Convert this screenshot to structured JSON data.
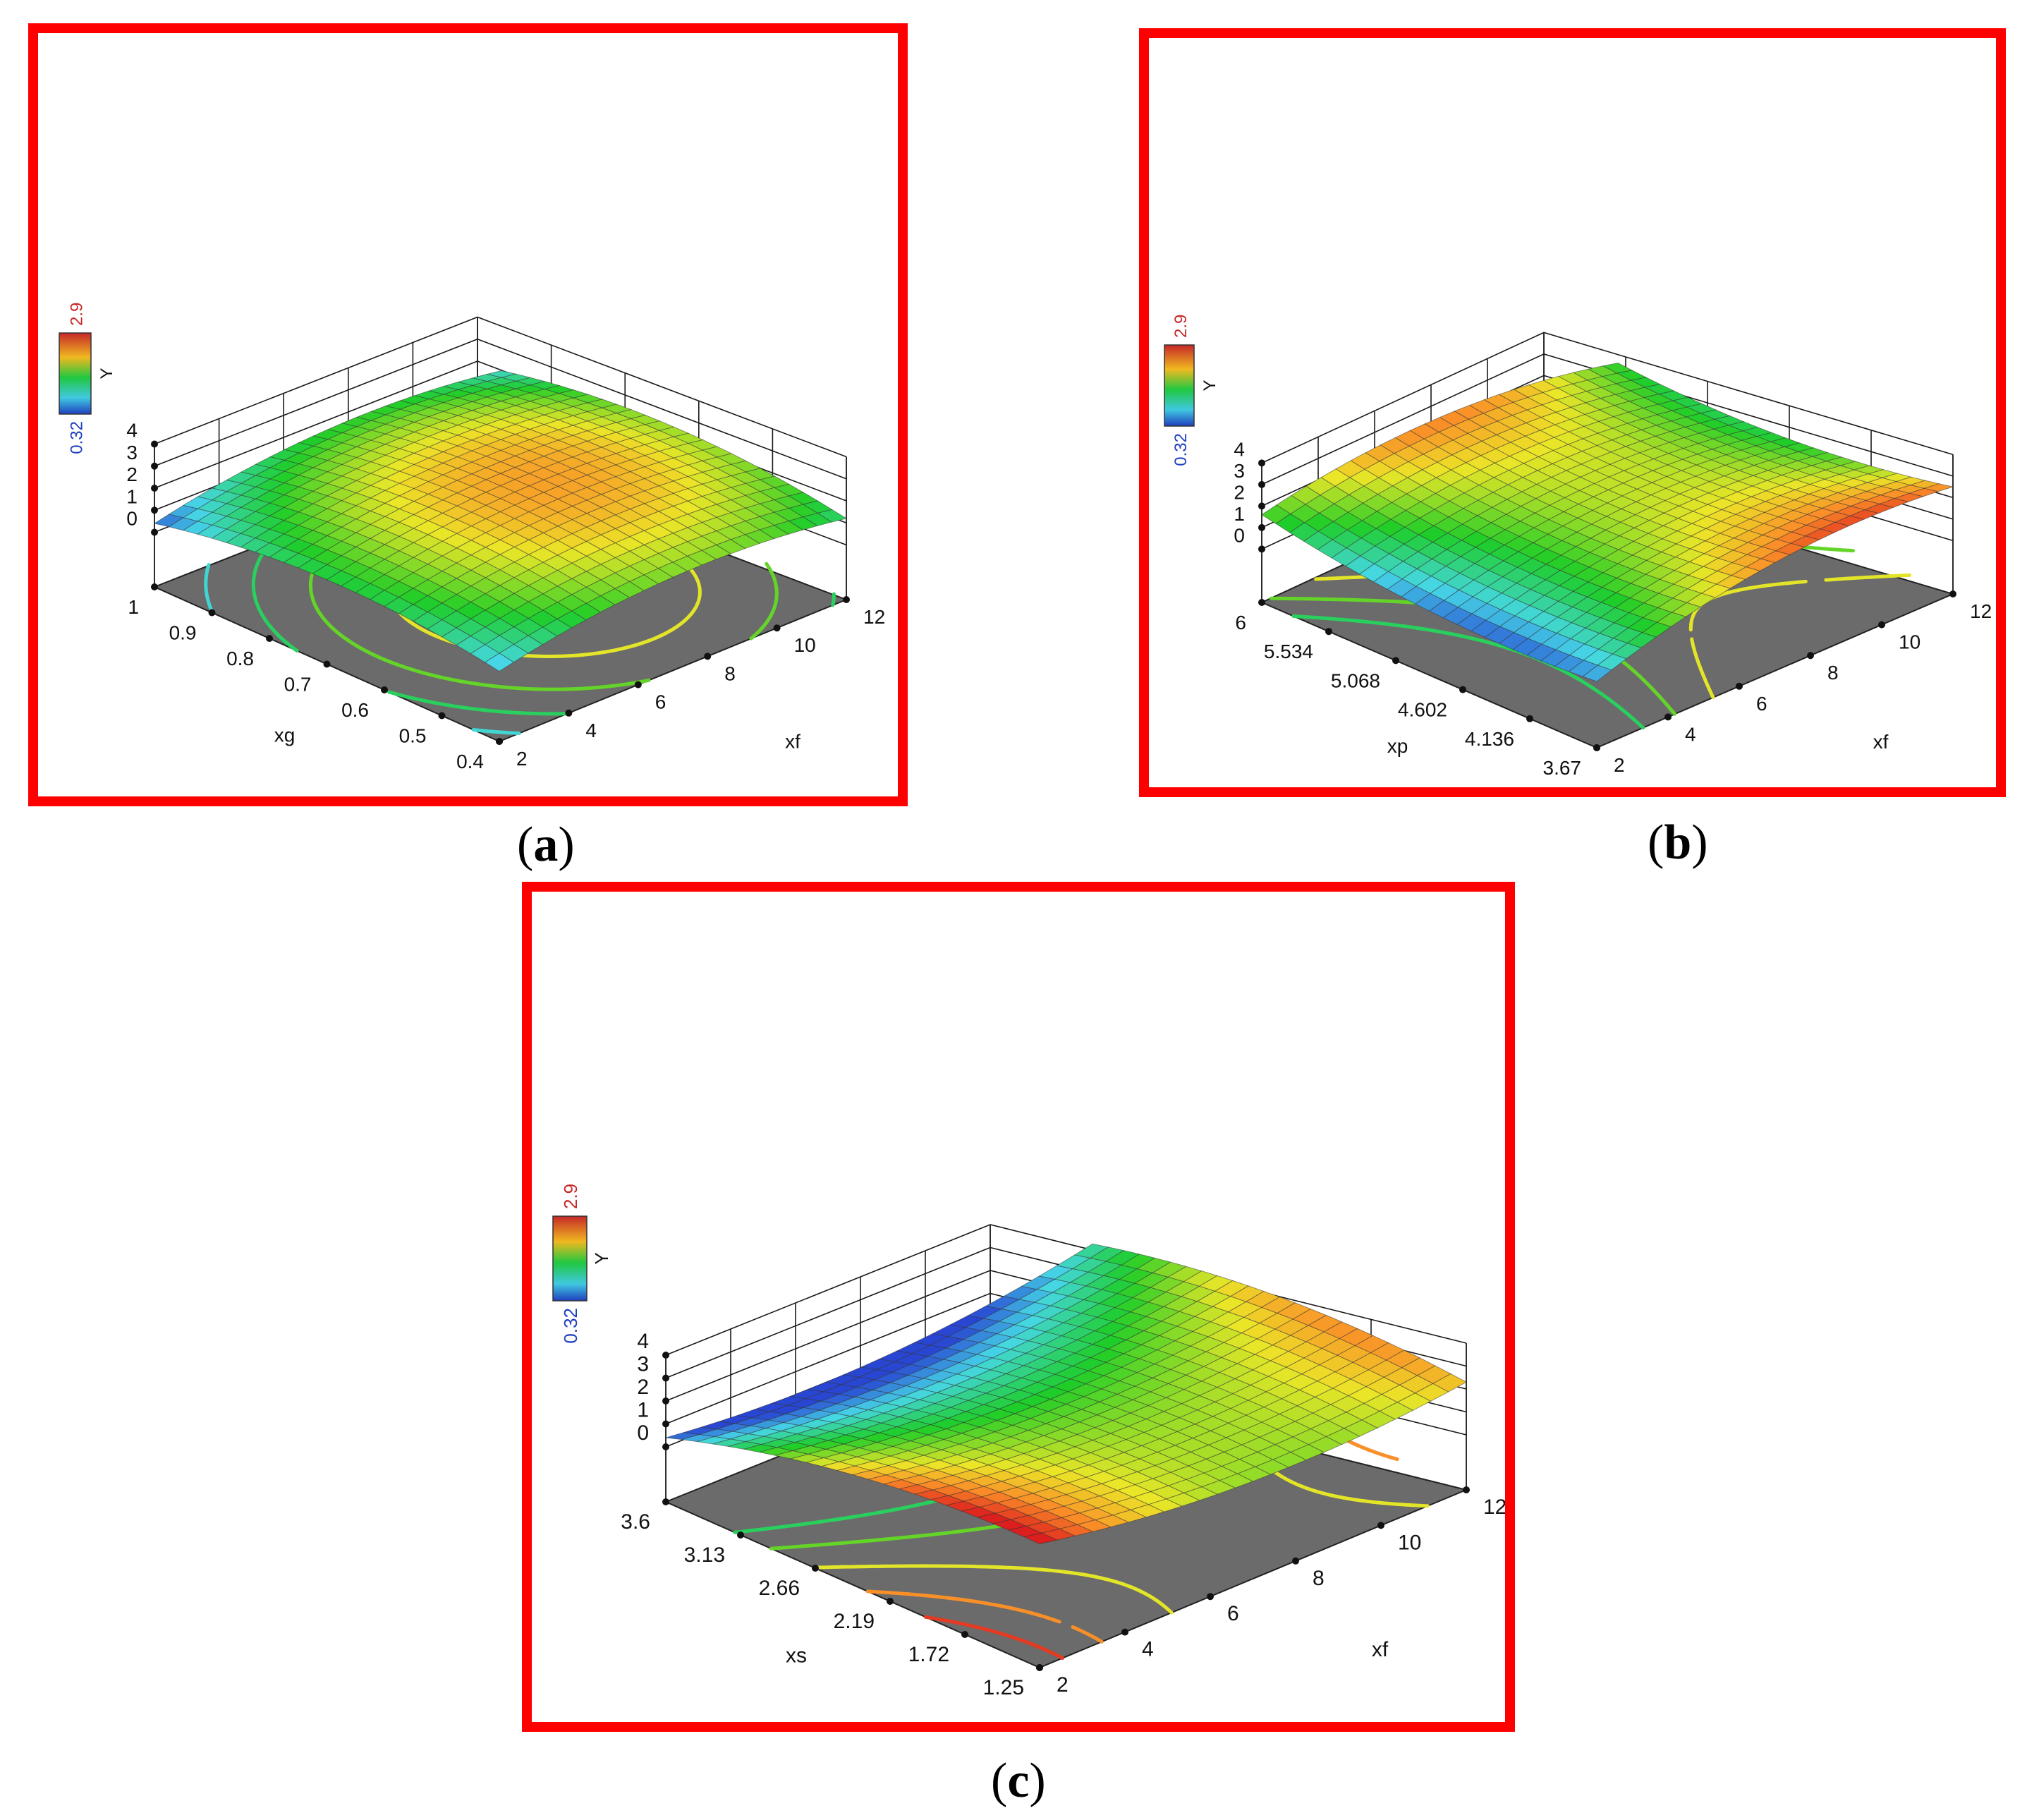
{
  "colorbar": {
    "label": "Y",
    "max_label": "2.9",
    "min_label": "0.32",
    "max_color": "#c62828",
    "min_color": "#1f3fbf"
  },
  "chart_data": [
    {
      "type": "surface3d",
      "caption_letter": "a",
      "z_label": "Y",
      "z_ticks": [
        "0",
        "1",
        "2",
        "3",
        "4"
      ],
      "zlim": [
        0,
        4
      ],
      "xf_label": "xf",
      "xf_ticks": [
        "2",
        "4",
        "6",
        "8",
        "10",
        "12"
      ],
      "xf_range": [
        2,
        12
      ],
      "second_label": "xg",
      "second_ticks": [
        "1",
        "0.9",
        "0.8",
        "0.7",
        "0.6",
        "0.5",
        "0.4"
      ],
      "second_range": [
        1,
        0.4
      ],
      "surface_model": {
        "c": 2.4,
        "a_xf": 0.25,
        "b_xf": -0.8,
        "a_s": 0.15,
        "b_s": -0.8,
        "cross": 0.0
      },
      "contour_levels": [
        0.9,
        1.3,
        1.7,
        2.1
      ]
    },
    {
      "type": "surface3d",
      "caption_letter": "b",
      "z_label": "Y",
      "z_ticks": [
        "0",
        "1",
        "2",
        "3",
        "4"
      ],
      "zlim": [
        0,
        4
      ],
      "xf_label": "xf",
      "xf_ticks": [
        "2",
        "4",
        "6",
        "8",
        "10",
        "12"
      ],
      "xf_range": [
        2,
        12
      ],
      "second_label": "xp",
      "second_ticks": [
        "6",
        "5.534",
        "5.068",
        "4.602",
        "4.136",
        "3.67"
      ],
      "second_range": [
        6,
        3.67
      ],
      "surface_model": {
        "c": 1.95,
        "a_xf": 0.45,
        "b_xf": -1.0,
        "a_s": 0.0,
        "b_s": 0.6,
        "cross": 0.5
      },
      "contour_levels": [
        1.3,
        1.7,
        2.1
      ]
    },
    {
      "type": "surface3d",
      "caption_letter": "c",
      "z_label": "Y",
      "z_ticks": [
        "0",
        "1",
        "2",
        "3",
        "4"
      ],
      "zlim": [
        0,
        4
      ],
      "xf_label": "xf",
      "xf_ticks": [
        "2",
        "4",
        "6",
        "8",
        "10",
        "12"
      ],
      "xf_range": [
        2,
        12
      ],
      "second_label": "xs",
      "second_ticks": [
        "3.6",
        "3.13",
        "2.66",
        "2.19",
        "1.72",
        "1.25"
      ],
      "second_range": [
        3.6,
        1.25
      ],
      "surface_model": {
        "c": 1.6,
        "a_xf": 0.0,
        "b_xf": 0.8,
        "a_s": 0.95,
        "b_s": -0.7,
        "cross": -0.35
      },
      "contour_levels": [
        1.3,
        1.7,
        2.1,
        2.5,
        2.8
      ]
    }
  ]
}
